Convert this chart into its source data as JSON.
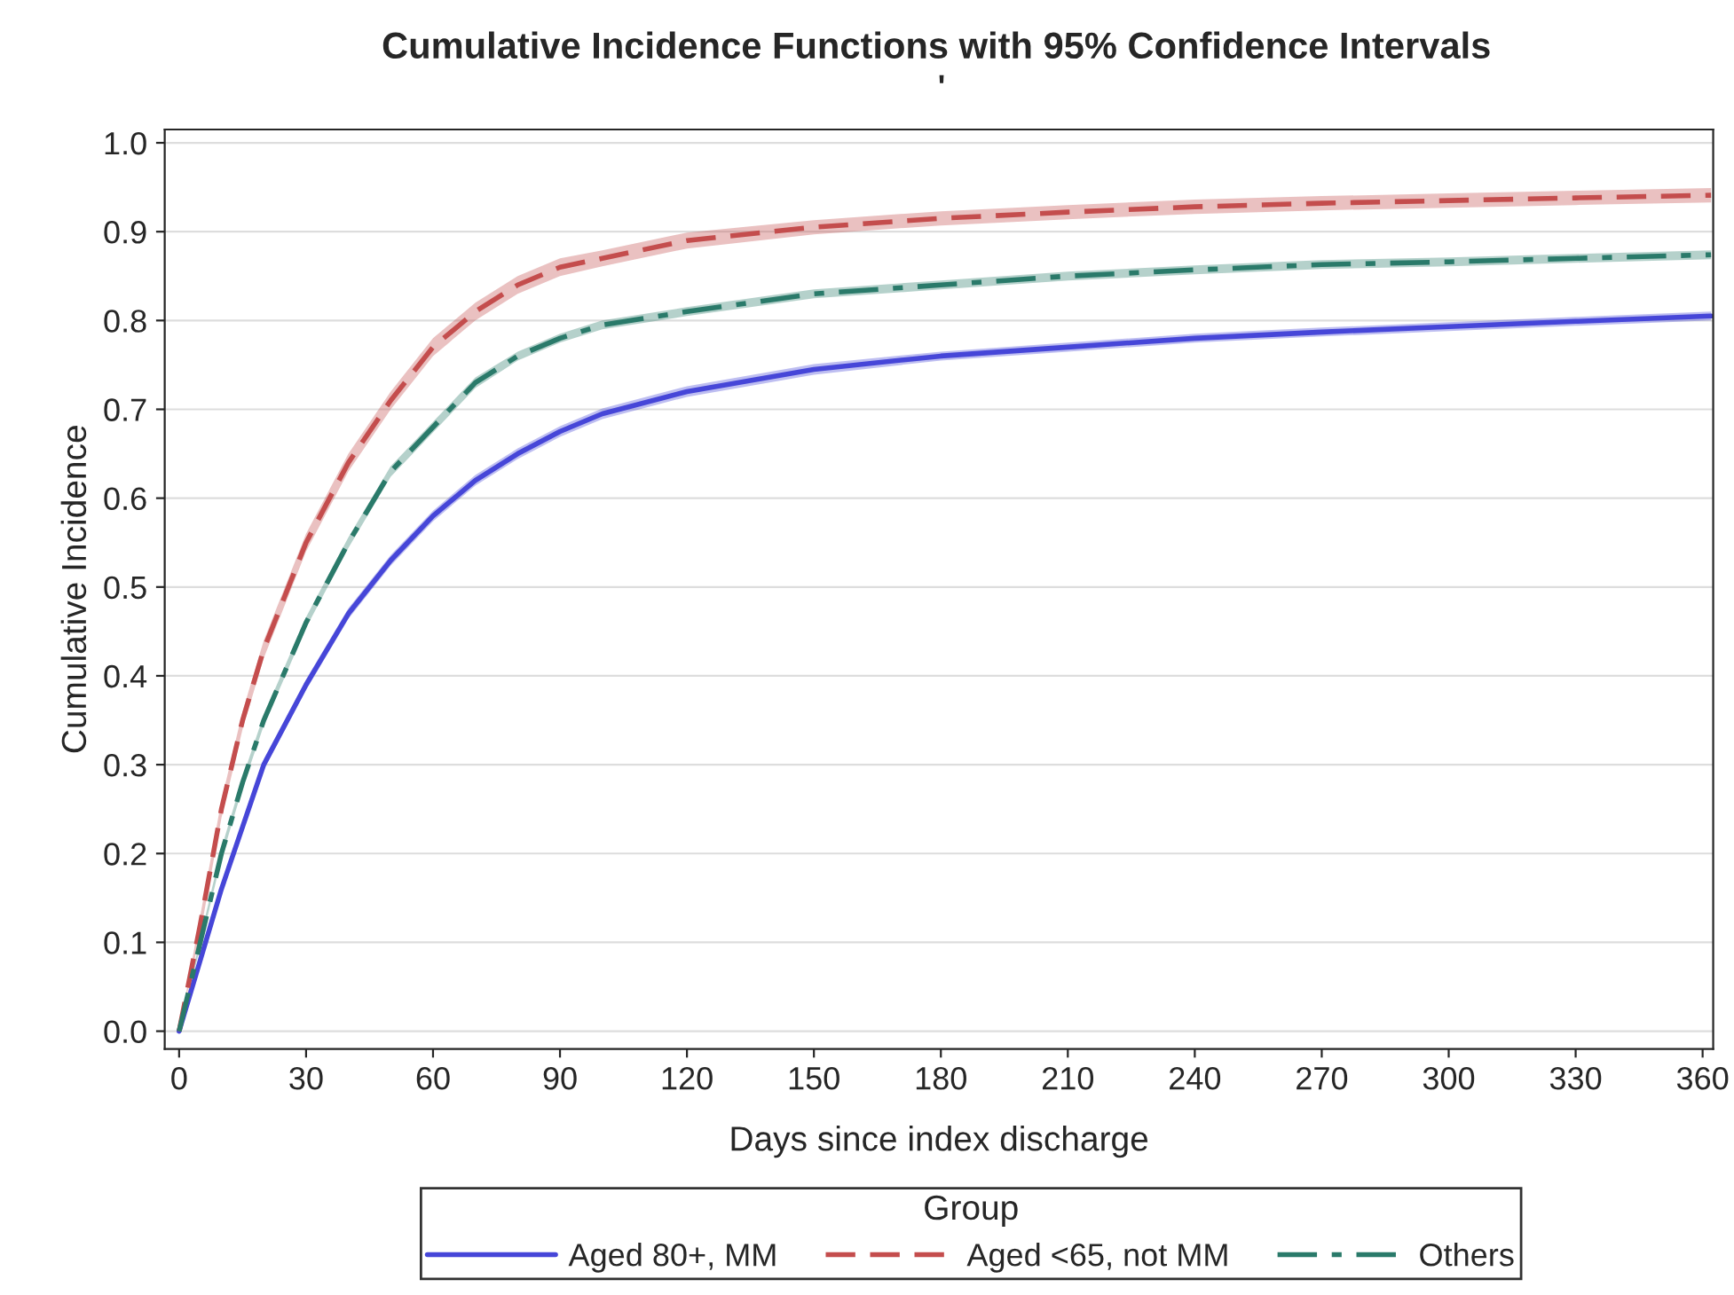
{
  "chart_data": {
    "type": "line",
    "title": "Cumulative Incidence Functions with 95% Confidence Intervals",
    "subtitle": "'",
    "xlabel": "Days since index discharge",
    "ylabel": "Cumulative Incidence",
    "legend_title": "Group",
    "x": [
      0,
      5,
      10,
      15,
      20,
      30,
      40,
      50,
      60,
      70,
      80,
      90,
      100,
      120,
      150,
      180,
      210,
      240,
      270,
      300,
      330,
      362
    ],
    "series": [
      {
        "name": "Aged 80+, MM",
        "color": "#4646d8",
        "line_style": "solid",
        "values": [
          0,
          0.08,
          0.16,
          0.23,
          0.3,
          0.39,
          0.47,
          0.53,
          0.58,
          0.62,
          0.65,
          0.675,
          0.695,
          0.72,
          0.745,
          0.76,
          0.77,
          0.78,
          0.787,
          0.793,
          0.799,
          0.805
        ],
        "lower": [
          0,
          0.075,
          0.155,
          0.224,
          0.294,
          0.384,
          0.464,
          0.524,
          0.574,
          0.614,
          0.644,
          0.669,
          0.689,
          0.714,
          0.739,
          0.755,
          0.765,
          0.775,
          0.782,
          0.788,
          0.794,
          0.8
        ],
        "upper": [
          0,
          0.085,
          0.165,
          0.236,
          0.306,
          0.396,
          0.476,
          0.536,
          0.586,
          0.626,
          0.656,
          0.681,
          0.701,
          0.726,
          0.751,
          0.765,
          0.775,
          0.785,
          0.792,
          0.798,
          0.804,
          0.81
        ]
      },
      {
        "name": "Aged <65, not MM",
        "color": "#c44d4d",
        "line_style": "dashed",
        "values": [
          0,
          0.12,
          0.25,
          0.35,
          0.43,
          0.55,
          0.64,
          0.71,
          0.77,
          0.81,
          0.84,
          0.86,
          0.87,
          0.89,
          0.905,
          0.915,
          0.922,
          0.928,
          0.932,
          0.935,
          0.938,
          0.941
        ],
        "lower": [
          0,
          0.11,
          0.24,
          0.34,
          0.42,
          0.54,
          0.63,
          0.7,
          0.76,
          0.8,
          0.83,
          0.85,
          0.861,
          0.881,
          0.897,
          0.907,
          0.914,
          0.92,
          0.924,
          0.927,
          0.93,
          0.933
        ],
        "upper": [
          0,
          0.13,
          0.26,
          0.36,
          0.44,
          0.56,
          0.65,
          0.72,
          0.78,
          0.82,
          0.85,
          0.87,
          0.879,
          0.899,
          0.913,
          0.923,
          0.93,
          0.936,
          0.94,
          0.943,
          0.946,
          0.949
        ]
      },
      {
        "name": "Others",
        "color": "#2a7a6a",
        "line_style": "dashdot",
        "values": [
          0,
          0.1,
          0.2,
          0.28,
          0.35,
          0.46,
          0.55,
          0.63,
          0.68,
          0.73,
          0.76,
          0.78,
          0.795,
          0.81,
          0.83,
          0.84,
          0.85,
          0.857,
          0.863,
          0.866,
          0.87,
          0.874
        ],
        "lower": [
          0,
          0.095,
          0.194,
          0.274,
          0.344,
          0.454,
          0.544,
          0.624,
          0.674,
          0.724,
          0.755,
          0.775,
          0.79,
          0.805,
          0.825,
          0.835,
          0.845,
          0.852,
          0.858,
          0.861,
          0.865,
          0.869
        ],
        "upper": [
          0,
          0.105,
          0.206,
          0.286,
          0.356,
          0.466,
          0.556,
          0.636,
          0.686,
          0.736,
          0.765,
          0.785,
          0.8,
          0.815,
          0.835,
          0.845,
          0.855,
          0.862,
          0.868,
          0.871,
          0.875,
          0.879
        ]
      }
    ],
    "xlim": [
      -3.4,
      362.5
    ],
    "xticks": [
      0,
      30,
      60,
      90,
      120,
      150,
      180,
      210,
      240,
      270,
      300,
      330,
      360
    ],
    "ylim": [
      -0.02,
      1.015
    ],
    "yticks": [
      {
        "value": 0,
        "label": "0.0"
      },
      0.1,
      0.2,
      0.3,
      0.4,
      0.5,
      0.6,
      0.7,
      0.8,
      0.9,
      {
        "value": 1,
        "label": "1.0"
      }
    ],
    "grid": "y",
    "legend": "bottom"
  }
}
